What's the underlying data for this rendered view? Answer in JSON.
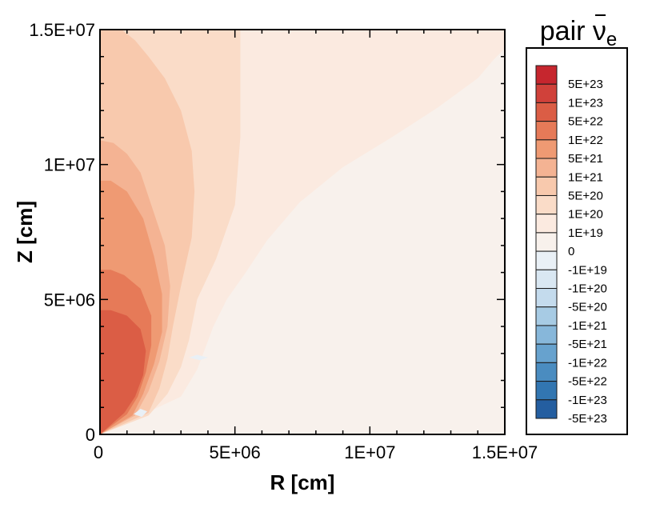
{
  "chart_data": {
    "type": "heatmap",
    "title": "pair ν̄e",
    "title_parts": {
      "prefix": "pair ",
      "symbol": "ν",
      "subscript": "e"
    },
    "xlabel": "R [cm]",
    "ylabel": "Z [cm]",
    "xlim": [
      0,
      15000000
    ],
    "ylim": [
      0,
      15000000
    ],
    "x_ticks": [
      {
        "value": 0,
        "label": "0"
      },
      {
        "value": 5000000,
        "label": "5E+06"
      },
      {
        "value": 10000000,
        "label": "1E+07"
      },
      {
        "value": 15000000,
        "label": "1.5E+07"
      }
    ],
    "y_ticks": [
      {
        "value": 0,
        "label": "0"
      },
      {
        "value": 5000000,
        "label": "5E+06"
      },
      {
        "value": 10000000,
        "label": "1E+07"
      },
      {
        "value": 15000000,
        "label": "1.5E+07"
      }
    ],
    "legend_position": "right",
    "legend_levels": [
      {
        "label": "5E+23",
        "color": "#c6262e"
      },
      {
        "label": "1E+23",
        "color": "#d0413a"
      },
      {
        "label": "5E+22",
        "color": "#db5d45"
      },
      {
        "label": "1E+22",
        "color": "#e67a58"
      },
      {
        "label": "5E+21",
        "color": "#ef9a73"
      },
      {
        "label": "1E+21",
        "color": "#f4b393"
      },
      {
        "label": "5E+20",
        "color": "#f8c9ad"
      },
      {
        "label": "1E+20",
        "color": "#fadcc8"
      },
      {
        "label": "1E+19",
        "color": "#fbeae0"
      },
      {
        "label": "0",
        "color": "#f8f1ec"
      },
      {
        "label": "-1E+19",
        "color": "#e9f0f6"
      },
      {
        "label": "-1E+20",
        "color": "#d9e7f2"
      },
      {
        "label": "-5E+20",
        "color": "#c4dbed"
      },
      {
        "label": "-1E+21",
        "color": "#a7cbe4"
      },
      {
        "label": "-5E+21",
        "color": "#87b7da"
      },
      {
        "label": "-1E+22",
        "color": "#67a2ce"
      },
      {
        "label": "-5E+22",
        "color": "#4a8cc0"
      },
      {
        "label": "-1E+23",
        "color": "#3276b1"
      },
      {
        "label": "-5E+23",
        "color": "#245ea0"
      }
    ],
    "regions": [
      {
        "level": "0",
        "value_range": [
          0,
          1e+19
        ],
        "outline_r": [
          0,
          15000000,
          15000000,
          0
        ],
        "outline_z": [
          0,
          0,
          15000000,
          15000000
        ]
      },
      {
        "level": "1E+19",
        "value_range": [
          1e+19,
          1e+20
        ],
        "outline_r": [
          0,
          3000000,
          3600000,
          3900000,
          4200000,
          4700000,
          5400000,
          6200000,
          7400000,
          9000000,
          10800000,
          12500000,
          14000000,
          14600000,
          15000000,
          15000000,
          0
        ],
        "outline_z": [
          0,
          1400000,
          2400000,
          3200000,
          4000000,
          5000000,
          6000000,
          7200000,
          8600000,
          9900000,
          11000000,
          12100000,
          13200000,
          13900000,
          14300000,
          15000000,
          15000000
        ]
      },
      {
        "level": "1E+20",
        "value_range": [
          1e+20,
          5e+20
        ],
        "outline_r": [
          0,
          1800000,
          2500000,
          3000000,
          3300000,
          3600000,
          4300000,
          5000000,
          5200000,
          5200000,
          0
        ],
        "outline_z": [
          0,
          700000,
          1500000,
          2500000,
          3500000,
          5000000,
          6500000,
          8500000,
          11000000,
          15000000,
          15000000
        ]
      },
      {
        "level": "5E+20",
        "value_range": [
          5e+20,
          1e+21
        ],
        "outline_r": [
          0,
          1800000,
          2200000,
          2500000,
          2700000,
          3000000,
          3400000,
          3500000,
          3400000,
          3000000,
          2400000,
          1800000,
          1300000,
          800000,
          0
        ],
        "outline_z": [
          0,
          800000,
          1700000,
          2800000,
          4000000,
          5500000,
          7300000,
          9000000,
          10500000,
          12000000,
          13200000,
          14000000,
          14600000,
          15000000,
          15000000
        ]
      },
      {
        "level": "1E+21",
        "value_range": [
          1e+21,
          5e+21
        ],
        "outline_r": [
          0,
          1300000,
          1800000,
          2200000,
          2500000,
          2600000,
          2400000,
          1900000,
          1500000,
          1000000,
          500000,
          0
        ],
        "outline_z": [
          0,
          700000,
          1600000,
          2700000,
          4000000,
          5500000,
          7000000,
          8500000,
          9700000,
          10400000,
          10800000,
          10900000
        ]
      },
      {
        "level": "5E+21",
        "value_range": [
          5e+21,
          1e+22
        ],
        "outline_r": [
          0,
          1200000,
          1600000,
          2000000,
          2300000,
          2300000,
          2000000,
          1600000,
          1000000,
          400000,
          0
        ],
        "outline_z": [
          0,
          700000,
          1500000,
          2600000,
          3800000,
          5200000,
          6600000,
          8000000,
          9000000,
          9400000,
          9400000
        ]
      },
      {
        "level": "1E+22",
        "value_range": [
          1e+22,
          5e+22
        ],
        "outline_r": [
          0,
          1000000,
          1400000,
          1700000,
          1900000,
          1900000,
          1500000,
          900000,
          400000,
          0
        ],
        "outline_z": [
          0,
          750000,
          1400000,
          2300000,
          3300000,
          4400000,
          5400000,
          5900000,
          6100000,
          6100000
        ]
      },
      {
        "level": "5E+22",
        "value_range": [
          5e+22,
          1e+23
        ],
        "outline_r": [
          0,
          900000,
          1300000,
          1600000,
          1700000,
          1500000,
          1000000,
          400000,
          0
        ],
        "outline_z": [
          0,
          800000,
          1400000,
          2200000,
          3100000,
          3900000,
          4400000,
          4600000,
          4600000
        ]
      },
      {
        "level": "-1E+19",
        "value_range": [
          -1e+20,
          -1e+19
        ],
        "outline_r": [
          1250000,
          1500000,
          1750000,
          1550000,
          1250000
        ],
        "outline_z": [
          750000,
          950000,
          850000,
          650000,
          750000
        ]
      },
      {
        "level": "-1E+19",
        "value_range": [
          -1e+20,
          -1e+19
        ],
        "outline_r": [
          3300000,
          3600000,
          4000000,
          3700000,
          3300000
        ],
        "outline_z": [
          2850000,
          2950000,
          2850000,
          2750000,
          2850000
        ]
      }
    ],
    "grid": false
  }
}
